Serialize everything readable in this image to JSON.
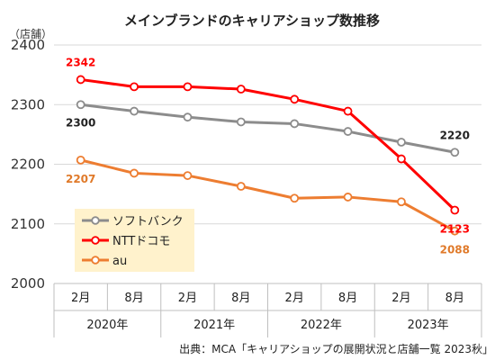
{
  "chart_data": {
    "type": "line",
    "title": "メインブランドのキャリアショップ数推移",
    "ylabel": "（店舗）",
    "ylim": [
      2000,
      2400
    ],
    "yticks": [
      "2000",
      "2100",
      "2200",
      "2300",
      "2400"
    ],
    "categories": [
      "2月",
      "8月",
      "2月",
      "8月",
      "2月",
      "8月",
      "2月",
      "8月"
    ],
    "years": [
      "2020年",
      "2021年",
      "2022年",
      "2023年"
    ],
    "grid": true,
    "legend_position": "bottom-left",
    "series": [
      {
        "name": "ソフトバンク",
        "color": "#8c8c8c",
        "values": [
          2300,
          2289,
          2279,
          2271,
          2268,
          2255,
          2237,
          2220
        ],
        "labels": [
          {
            "index": 0,
            "text": "2300"
          },
          {
            "index": 7,
            "text": "2220"
          }
        ]
      },
      {
        "name": "NTTドコモ",
        "color": "#ff0000",
        "values": [
          2342,
          2330,
          2330,
          2326,
          2309,
          2289,
          2209,
          2123
        ],
        "labels": [
          {
            "index": 0,
            "text": "2342"
          },
          {
            "index": 7,
            "text": "2123"
          }
        ]
      },
      {
        "name": "au",
        "color": "#ed7d31",
        "values": [
          2207,
          2185,
          2181,
          2163,
          2143,
          2145,
          2137,
          2088
        ],
        "labels": [
          {
            "index": 0,
            "text": "2207"
          },
          {
            "index": 7,
            "text": "2088"
          }
        ]
      }
    ],
    "source": "出典：MCA「キャリアショップの展開状況と店舗一覧 2023秋」"
  }
}
